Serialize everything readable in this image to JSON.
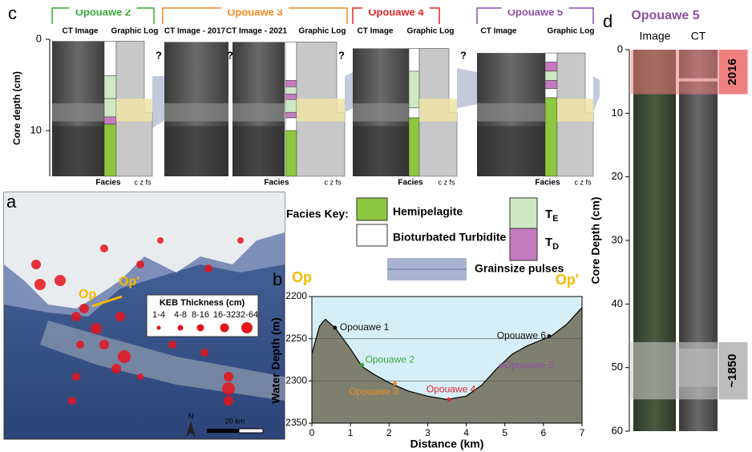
{
  "figure": {
    "panel_c": {
      "label": "c",
      "y_label": "Core depth (cm)",
      "ylim": [
        0,
        15
      ],
      "yticks": [
        0,
        10
      ],
      "cores": [
        {
          "name": "Opouawe 2",
          "color": "#3aa935",
          "columns": [
            "CT Image",
            "Graphic Log"
          ],
          "questions": [
            "?"
          ],
          "facies_label": "Facies",
          "grain_label": "c z fs"
        },
        {
          "name": "Opouawe 3",
          "color": "#f28a1e",
          "columns": [
            "CT Image - 2017",
            "CT Image - 2021",
            "Graphic Log"
          ],
          "questions": [
            "?",
            "?"
          ],
          "facies_label": "Facies",
          "grain_label": "c z fs"
        },
        {
          "name": "Opouawe 4",
          "color": "#e3262b",
          "columns": [
            "CT Image",
            "Graphic Log"
          ],
          "questions": [
            "?"
          ],
          "facies_label": "Facies",
          "grain_label": "c z fs"
        },
        {
          "name": "Opouawe 5",
          "color": "#8d4fa3",
          "columns": [
            "CT Image",
            "Graphic Log"
          ],
          "questions": [],
          "facies_label": "Facies",
          "grain_label": "c z fs"
        }
      ]
    },
    "key": {
      "title": "Facies Key:",
      "hemipelagite": "Hemipelagite",
      "bioturbated": "Bioturbated Turbidite",
      "te": {
        "main": "T",
        "sub": "E"
      },
      "td": {
        "main": "T",
        "sub": "D"
      },
      "pulses": "Grainsize pulses"
    },
    "panel_a": {
      "label": "a",
      "op": "Op",
      "op_prime": "Op′",
      "legend_title": "KEB Thickness (cm)",
      "legend_sizes": [
        "1-4",
        "4-8",
        "8-16",
        "16-32",
        "32-64"
      ],
      "north": "N",
      "scale": "20 km"
    },
    "panel_b": {
      "label": "b",
      "op": "Op",
      "op_prime": "Op′"
    },
    "panel_d": {
      "label": "d",
      "title": "Opouawe 5",
      "columns": [
        "Image",
        "CT"
      ],
      "y_label": "Core Depth (cm)",
      "ylim": [
        0,
        60
      ],
      "yticks": [
        0,
        10,
        20,
        30,
        40,
        50,
        60
      ],
      "annotations": [
        "2016",
        "~1850"
      ]
    }
  },
  "chart_data": {
    "type": "line",
    "x_label": "Distance (km)",
    "y_label": "Water Depth (m)",
    "xlim": [
      0,
      7
    ],
    "xticks": [
      0,
      1,
      2,
      3,
      4,
      5,
      6,
      7
    ],
    "ylim": [
      2200,
      2350
    ],
    "yticks": [
      2200,
      2250,
      2300,
      2350
    ],
    "y_inverted": true,
    "grid": true,
    "x": [
      0,
      0.2,
      0.35,
      0.6,
      1,
      1.3,
      1.6,
      2,
      2.5,
      3,
      3.5,
      4,
      4.4,
      4.8,
      5.2,
      5.6,
      6.2,
      6.6,
      7
    ],
    "values": [
      2268,
      2235,
      2227,
      2237,
      2262,
      2283,
      2292,
      2302,
      2312,
      2318,
      2322,
      2318,
      2305,
      2285,
      2268,
      2258,
      2247,
      2233,
      2213
    ],
    "color": "#7f7f6f",
    "points": [
      {
        "name": "Opouawe 1",
        "color": "#111111",
        "x": 0.6,
        "y": 2237
      },
      {
        "name": "Opouawe 2",
        "color": "#3aa935",
        "x": 1.3,
        "y": 2281
      },
      {
        "name": "Opouawe 3",
        "color": "#f28a1e",
        "x": 2.15,
        "y": 2303
      },
      {
        "name": "Opouawe 4",
        "color": "#e3262b",
        "x": 3.55,
        "y": 2322
      },
      {
        "name": "Opouawe 5",
        "color": "#8d4fa3",
        "x": 4.9,
        "y": 2282
      },
      {
        "name": "Opouawe 6",
        "color": "#111111",
        "x": 6.15,
        "y": 2247
      }
    ]
  }
}
